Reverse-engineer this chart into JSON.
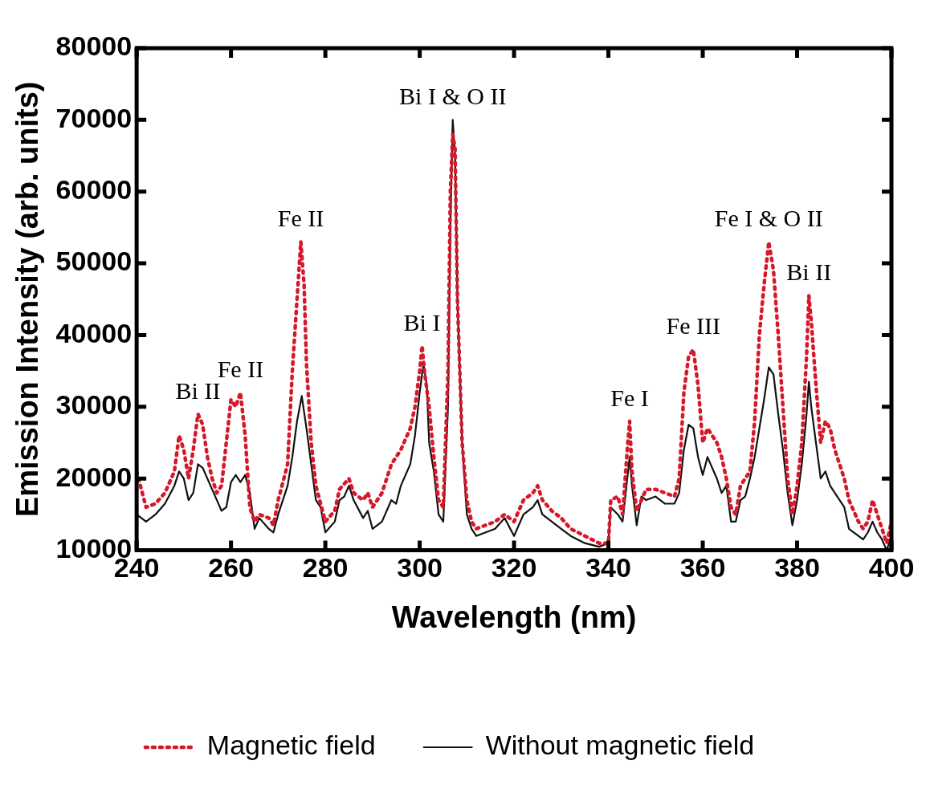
{
  "chart_data": {
    "type": "line",
    "xlabel": "Wavelength (nm)",
    "ylabel": "Emission Intensity (arb. units)",
    "xlim": [
      240,
      400
    ],
    "xticks": [
      240,
      260,
      280,
      300,
      320,
      340,
      360,
      380,
      400
    ],
    "ylim": [
      10000,
      80000
    ],
    "yticks": [
      10000,
      20000,
      30000,
      40000,
      50000,
      60000,
      70000,
      80000
    ],
    "grid": false,
    "legend": "bottom",
    "marker": "none",
    "series": [
      {
        "name": "Magnetic field",
        "color": "#d7182a",
        "line_style": "dotted",
        "x": [
          240,
          241,
          242,
          244,
          246,
          248,
          249,
          250,
          251,
          252,
          253,
          254,
          255,
          256,
          257,
          258,
          259,
          260,
          261,
          262,
          263,
          264,
          265,
          266,
          268,
          269,
          270,
          272,
          273,
          274,
          274.8,
          275.5,
          276,
          277,
          278,
          279,
          280,
          282,
          283,
          285,
          286,
          288,
          289,
          290,
          292,
          294,
          296,
          298,
          299,
          300,
          300.5,
          301,
          302,
          303,
          304,
          305,
          306,
          306.5,
          307,
          307.5,
          308,
          309,
          310,
          311,
          312,
          314,
          316,
          318,
          320,
          322,
          324,
          325,
          326,
          328,
          330,
          332,
          335,
          338,
          340,
          340.5,
          342,
          343,
          344,
          344.5,
          345,
          346,
          348,
          350,
          352,
          354,
          355,
          356,
          357,
          358,
          359,
          360,
          361,
          362,
          363,
          364,
          365,
          366,
          367,
          368,
          369,
          370,
          371,
          372,
          373,
          374,
          375,
          376,
          377,
          378,
          379,
          380,
          381,
          382,
          382.5,
          383,
          384,
          385,
          386,
          387,
          388,
          390,
          391,
          392,
          393,
          394,
          395,
          396,
          397,
          398,
          399,
          400
        ],
        "values": [
          21000,
          18500,
          16000,
          16500,
          18000,
          21000,
          26000,
          24000,
          20000,
          24000,
          29000,
          27500,
          23000,
          20000,
          18000,
          19000,
          25000,
          31000,
          30000,
          32000,
          26000,
          16000,
          14000,
          15000,
          14500,
          13500,
          17000,
          22000,
          35000,
          45000,
          53000,
          47000,
          36000,
          25000,
          19000,
          16500,
          14000,
          15500,
          18500,
          20000,
          18000,
          17000,
          18000,
          16000,
          18000,
          22000,
          24000,
          27000,
          30000,
          35000,
          38500,
          35000,
          30000,
          23000,
          17000,
          16000,
          35000,
          60000,
          68000,
          66000,
          45000,
          25000,
          17000,
          14000,
          13000,
          13500,
          14000,
          15000,
          14000,
          17000,
          18000,
          19000,
          17000,
          15500,
          14500,
          13000,
          12000,
          11000,
          11000,
          17000,
          17500,
          15000,
          24000,
          28000,
          21000,
          15500,
          18500,
          18500,
          18000,
          17500,
          20000,
          32000,
          37000,
          38000,
          33000,
          25000,
          27000,
          26000,
          25000,
          23000,
          20000,
          16000,
          15000,
          19000,
          20000,
          21000,
          28000,
          40000,
          47000,
          53000,
          49000,
          40000,
          30000,
          20000,
          15000,
          19000,
          25000,
          37000,
          45500,
          42000,
          33000,
          25000,
          28000,
          27000,
          24000,
          20000,
          17000,
          15500,
          14000,
          13000,
          14000,
          17000,
          15000,
          13000,
          11000,
          14000
        ]
      },
      {
        "name": "Without magnetic field",
        "color": "#111111",
        "line_style": "solid",
        "x": [
          240,
          241,
          242,
          244,
          246,
          248,
          249,
          250,
          251,
          252,
          253,
          254,
          256,
          258,
          259,
          260,
          261,
          262,
          263,
          264,
          265,
          266,
          268,
          269,
          270,
          272,
          273,
          274,
          275,
          276,
          277,
          278,
          279,
          280,
          282,
          283,
          284,
          285,
          286,
          288,
          289,
          290,
          292,
          294,
          295,
          296,
          298,
          299,
          300,
          300.8,
          301.5,
          302,
          303,
          304,
          305,
          306,
          306.5,
          307,
          307.5,
          308,
          309,
          310,
          311,
          312,
          314,
          316,
          318,
          320,
          322,
          324,
          325,
          326,
          328,
          330,
          332,
          335,
          338,
          340,
          340.5,
          342,
          343,
          344,
          344.5,
          345,
          346,
          347,
          348,
          350,
          352,
          354,
          355,
          356,
          357,
          358,
          359,
          360,
          361,
          362,
          363,
          364,
          365,
          366,
          367,
          368,
          369,
          370,
          371,
          372,
          373,
          374,
          375,
          376,
          377,
          378,
          379,
          380,
          381,
          382,
          382.5,
          383,
          384,
          385,
          386,
          387,
          388,
          390,
          391,
          392,
          393,
          394,
          395,
          396,
          397,
          398,
          399,
          400
        ],
        "values": [
          15000,
          14500,
          14000,
          15000,
          16500,
          19000,
          21000,
          20000,
          17000,
          18000,
          22000,
          21500,
          18500,
          15500,
          16000,
          19500,
          20500,
          19500,
          20500,
          18000,
          13000,
          14500,
          13000,
          12500,
          15000,
          19000,
          23000,
          28000,
          31500,
          27000,
          22000,
          17000,
          16000,
          12500,
          14000,
          17000,
          17500,
          19000,
          17000,
          14500,
          15500,
          13000,
          14000,
          17000,
          16500,
          19000,
          22000,
          26000,
          32000,
          36000,
          33000,
          25000,
          21000,
          15000,
          14000,
          30000,
          55000,
          70000,
          65000,
          45000,
          25000,
          15000,
          13000,
          12000,
          12500,
          13000,
          14500,
          12000,
          15000,
          16000,
          17000,
          15000,
          14000,
          13000,
          12000,
          11000,
          10500,
          11000,
          16000,
          15000,
          14000,
          20000,
          23000,
          19000,
          13500,
          17500,
          17000,
          17500,
          16500,
          16500,
          18000,
          24000,
          27500,
          27000,
          23000,
          20500,
          23000,
          21500,
          20000,
          18000,
          19000,
          14000,
          14000,
          17000,
          17500,
          20000,
          23000,
          27000,
          31000,
          35500,
          34500,
          29000,
          24000,
          18000,
          13500,
          17000,
          22000,
          29000,
          33500,
          30000,
          25000,
          20000,
          21000,
          19000,
          18000,
          16000,
          13000,
          12500,
          12000,
          11500,
          12500,
          14000,
          12500,
          11500,
          10000,
          12000
        ]
      }
    ],
    "annotations": [
      {
        "text": "Bi II",
        "x": 253,
        "y": 29000
      },
      {
        "text": "Fe II",
        "x": 262,
        "y": 32000
      },
      {
        "text": "Fe II",
        "x": 274.8,
        "y": 53000
      },
      {
        "text": "Bi I",
        "x": 300.5,
        "y": 38500
      },
      {
        "text": "Bi I & O II",
        "x": 307,
        "y": 70000
      },
      {
        "text": "Fe I",
        "x": 344.5,
        "y": 28000
      },
      {
        "text": "Fe III",
        "x": 358,
        "y": 38000
      },
      {
        "text": "Fe I & O II",
        "x": 374,
        "y": 53000
      },
      {
        "text": "Bi II",
        "x": 382.5,
        "y": 45500
      }
    ]
  }
}
